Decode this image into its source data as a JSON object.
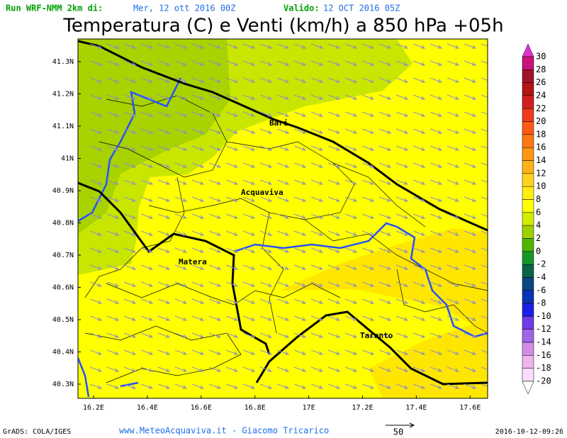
{
  "header": {
    "run": "Run WRF-NMM 2km di:",
    "run_date": "Mer, 12 ott 2016 00Z",
    "valid_label": "Valido:",
    "valid_date": "12 OCT 2016 05Z",
    "title": "Temperatura (C) e Venti (km/h) a 850 hPa +05h"
  },
  "map": {
    "lat_labels": [
      "41.3N",
      "41.2N",
      "41.1N",
      "41N",
      "40.9N",
      "40.8N",
      "40.7N",
      "40.6N",
      "40.5N",
      "40.4N",
      "40.3N"
    ],
    "lon_labels": [
      "16.2E",
      "16.4E",
      "16.6E",
      "16.8E",
      "17E",
      "17.2E",
      "17.4E",
      "17.6E"
    ],
    "places": [
      "Bari",
      "Acquaviva",
      "Matera",
      "Taranto"
    ]
  },
  "colorbar": {
    "labels": [
      30,
      28,
      26,
      24,
      22,
      20,
      18,
      16,
      14,
      12,
      10,
      8,
      6,
      4,
      2,
      0,
      -2,
      -4,
      -6,
      -8,
      -10,
      -12,
      -14,
      -16,
      -18,
      -20
    ],
    "colors": [
      "#e030d0",
      "#c81478",
      "#a01428",
      "#b41414",
      "#d21e1e",
      "#f03c1e",
      "#ff5a14",
      "#ff7814",
      "#ff9614",
      "#ffb414",
      "#ffd21e",
      "#ffee10",
      "#ffff00",
      "#d4ec00",
      "#a0d000",
      "#50b400",
      "#149628",
      "#0a6446",
      "#0a4682",
      "#0a32b4",
      "#1e1ee6",
      "#6e3ce6",
      "#a064e6",
      "#d28ce6",
      "#f0b4f0",
      "#fcdcfc",
      "#ffffff"
    ]
  },
  "footer": {
    "grads": "GrADS: COLA/IGES",
    "site": "www.MeteoAcquaviva.it - Giacomo Tricarico",
    "vector_ref": "50",
    "timestamp": "2016-10-12-09:26"
  }
}
